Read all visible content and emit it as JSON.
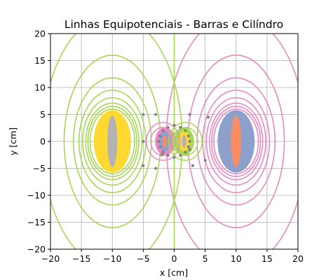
{
  "chart_data": {
    "type": "contour",
    "title": "Linhas Equipotenciais - Barras e Cilíndro",
    "xlabel": "x [cm]",
    "ylabel": "y [cm]",
    "xlim": [
      -20,
      20
    ],
    "ylim": [
      -20,
      20
    ],
    "grid": true,
    "xticks": [
      "−20",
      "−15",
      "−10",
      "−5",
      "0",
      "5",
      "10",
      "15",
      "20"
    ],
    "yticks": [
      "−20",
      "−15",
      "−10",
      "−5",
      "0",
      "5",
      "10",
      "15",
      "20"
    ],
    "tick_values": [
      -20,
      -15,
      -10,
      -5,
      0,
      5,
      10,
      15,
      20
    ],
    "sources": [
      {
        "name": "left-bar",
        "x": -10,
        "y": 0,
        "sign": 1
      },
      {
        "name": "right-bar",
        "x": 10,
        "y": 0,
        "sign": -1
      },
      {
        "name": "cylinder",
        "x": 0,
        "y": 0,
        "radius": 3
      }
    ],
    "colors": {
      "positive_lines": "#a6d854",
      "negative_lines": "#e78ac3",
      "left_fill_outer": "#ffd92f",
      "left_fill_inner": "#b3b3b3",
      "right_fill_outer": "#8da0cb",
      "right_fill_inner": "#fc8d62",
      "grid": "#b0b0b0",
      "cylinder_points": "#808080"
    },
    "cylinder_points": [
      [
        -2.5,
        0
      ],
      [
        -2.3,
        1
      ],
      [
        -2.3,
        -1
      ],
      [
        -1.8,
        2
      ],
      [
        -1.8,
        -2
      ],
      [
        -1,
        2.6
      ],
      [
        -1,
        -2.6
      ],
      [
        0,
        3
      ],
      [
        0,
        -3
      ],
      [
        1,
        2.6
      ],
      [
        1,
        -2.6
      ],
      [
        1.8,
        2
      ],
      [
        1.8,
        -2
      ],
      [
        2.3,
        1
      ],
      [
        2.3,
        -1
      ],
      [
        2.5,
        0
      ],
      [
        -5,
        5
      ],
      [
        -5,
        -4.5
      ],
      [
        -3,
        5
      ],
      [
        -3,
        -5
      ],
      [
        -5,
        0
      ],
      [
        2.5,
        5
      ],
      [
        3,
        -4.5
      ],
      [
        5.5,
        4.5
      ],
      [
        5,
        -3.5
      ],
      [
        -2,
        -2.5
      ],
      [
        2.5,
        -1.5
      ]
    ],
    "contour_levels_positive": [
      {
        "level": 1,
        "rx": 11.3,
        "ry": 23.5
      },
      {
        "level": 2,
        "rx": 7.8,
        "ry": 16
      },
      {
        "level": 3,
        "rx": 6.3,
        "ry": 11.8
      },
      {
        "level": 4,
        "rx": 5.4,
        "ry": 9.5
      },
      {
        "level": 5,
        "rx": 4.8,
        "ry": 8.1
      },
      {
        "level": 6,
        "rx": 4.3,
        "ry": 7.1
      },
      {
        "level": 7,
        "rx": 3.95,
        "ry": 6.5
      },
      {
        "level": 8,
        "rx": 3.6,
        "ry": 6
      }
    ],
    "contour_levels_negative": [
      {
        "level": 1,
        "rx": 11.3,
        "ry": 23.5
      },
      {
        "level": 2,
        "rx": 7.8,
        "ry": 16
      },
      {
        "level": 3,
        "rx": 6.3,
        "ry": 11.8
      },
      {
        "level": 4,
        "rx": 5.4,
        "ry": 9.5
      },
      {
        "level": 5,
        "rx": 4.8,
        "ry": 8.1
      },
      {
        "level": 6,
        "rx": 4.3,
        "ry": 7.1
      },
      {
        "level": 7,
        "rx": 3.95,
        "ry": 6.5
      },
      {
        "level": 8,
        "rx": 3.6,
        "ry": 6
      }
    ],
    "zero_line_x": 0
  }
}
